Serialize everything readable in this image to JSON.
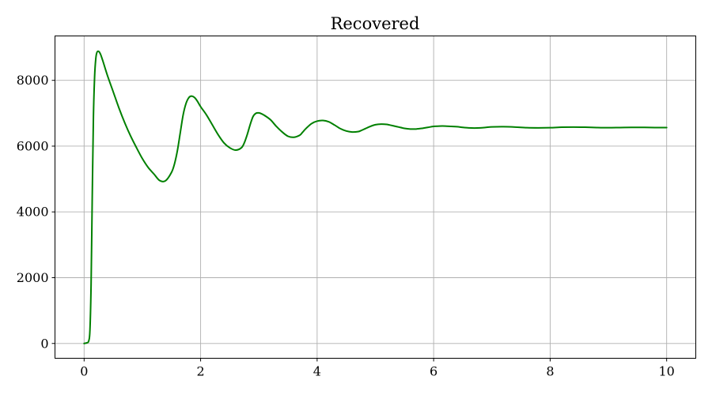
{
  "chart_data": {
    "type": "line",
    "title": "Recovered",
    "xlabel": "",
    "ylabel": "",
    "xlim": [
      -0.5,
      10.5
    ],
    "ylim": [
      -450,
      9350
    ],
    "xticks": [
      0,
      2,
      4,
      6,
      8,
      10
    ],
    "xtick_labels": [
      "0",
      "2",
      "4",
      "6",
      "8",
      "10"
    ],
    "yticks": [
      0,
      2000,
      4000,
      6000,
      8000
    ],
    "ytick_labels": [
      "0",
      "2000",
      "4000",
      "6000",
      "8000"
    ],
    "grid": true,
    "legend": false,
    "series": [
      {
        "color": "#008000",
        "x": [
          0,
          0.05,
          0.08,
          0.1,
          0.12,
          0.14,
          0.16,
          0.18,
          0.2,
          0.22,
          0.25,
          0.28,
          0.32,
          0.4,
          0.5,
          0.6,
          0.7,
          0.8,
          0.9,
          1.0,
          1.1,
          1.2,
          1.3,
          1.4,
          1.5,
          1.55,
          1.6,
          1.65,
          1.7,
          1.75,
          1.8,
          1.85,
          1.9,
          1.95,
          2.0,
          2.1,
          2.2,
          2.3,
          2.4,
          2.5,
          2.6,
          2.7,
          2.75,
          2.8,
          2.85,
          2.9,
          2.95,
          3.0,
          3.05,
          3.1,
          3.2,
          3.3,
          3.4,
          3.5,
          3.6,
          3.7,
          3.75,
          3.8,
          3.9,
          4.0,
          4.1,
          4.2,
          4.3,
          4.4,
          4.5,
          4.6,
          4.7,
          4.75,
          4.8,
          4.9,
          5.0,
          5.1,
          5.2,
          5.25,
          5.3,
          5.4,
          5.5,
          5.6,
          5.7,
          5.8,
          5.9,
          6.0,
          6.1,
          6.2,
          6.3,
          6.4,
          6.5,
          6.6,
          6.7,
          6.8,
          6.9,
          7.0,
          7.2,
          7.4,
          7.6,
          7.8,
          8.0,
          8.2,
          8.4,
          8.6,
          8.8,
          9.0,
          9.2,
          9.4,
          9.6,
          9.8,
          10.0
        ],
        "y": [
          0,
          20,
          80,
          400,
          1800,
          4500,
          6900,
          8100,
          8650,
          8850,
          8880,
          8800,
          8600,
          8150,
          7650,
          7150,
          6700,
          6300,
          5950,
          5620,
          5350,
          5150,
          4950,
          4950,
          5200,
          5450,
          5850,
          6400,
          6950,
          7300,
          7480,
          7520,
          7470,
          7350,
          7200,
          6950,
          6650,
          6350,
          6100,
          5950,
          5880,
          5950,
          6100,
          6350,
          6650,
          6900,
          7000,
          7010,
          6980,
          6930,
          6800,
          6600,
          6430,
          6300,
          6270,
          6330,
          6420,
          6520,
          6680,
          6760,
          6780,
          6740,
          6640,
          6530,
          6460,
          6430,
          6440,
          6470,
          6510,
          6590,
          6650,
          6670,
          6660,
          6640,
          6620,
          6580,
          6540,
          6520,
          6520,
          6540,
          6570,
          6600,
          6610,
          6610,
          6600,
          6590,
          6570,
          6555,
          6550,
          6555,
          6570,
          6585,
          6590,
          6580,
          6560,
          6555,
          6560,
          6575,
          6580,
          6575,
          6565,
          6560,
          6565,
          6570,
          6570,
          6565,
          6565
        ]
      }
    ]
  }
}
